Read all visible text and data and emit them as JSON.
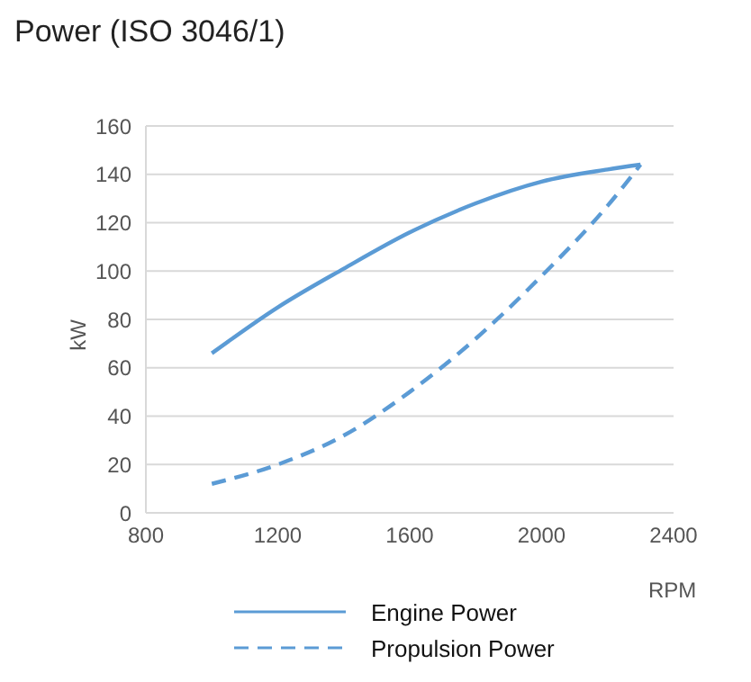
{
  "chart_data": {
    "type": "line",
    "title": "Power (ISO 3046/1)",
    "xlabel": "RPM",
    "ylabel": "kW",
    "x": [
      1000,
      1200,
      1400,
      1600,
      1800,
      2000,
      2200,
      2300
    ],
    "series": [
      {
        "name": "Engine Power",
        "color": "#5b9bd5",
        "line_style": "solid",
        "values": [
          66,
          85,
          101,
          116,
          128,
          137,
          142,
          144
        ]
      },
      {
        "name": "Propulsion Power",
        "color": "#5b9bd5",
        "line_style": "dashed",
        "values": [
          12,
          20,
          32,
          50,
          72,
          98,
          127,
          144
        ]
      }
    ],
    "xlim": [
      800,
      2400
    ],
    "xticks": [
      800,
      1200,
      1600,
      2000,
      2400
    ],
    "ylim": [
      0,
      160
    ],
    "yticks": [
      0,
      20,
      40,
      60,
      80,
      100,
      120,
      140,
      160
    ],
    "grid": "y",
    "legend": "bottom",
    "marker": "none"
  }
}
